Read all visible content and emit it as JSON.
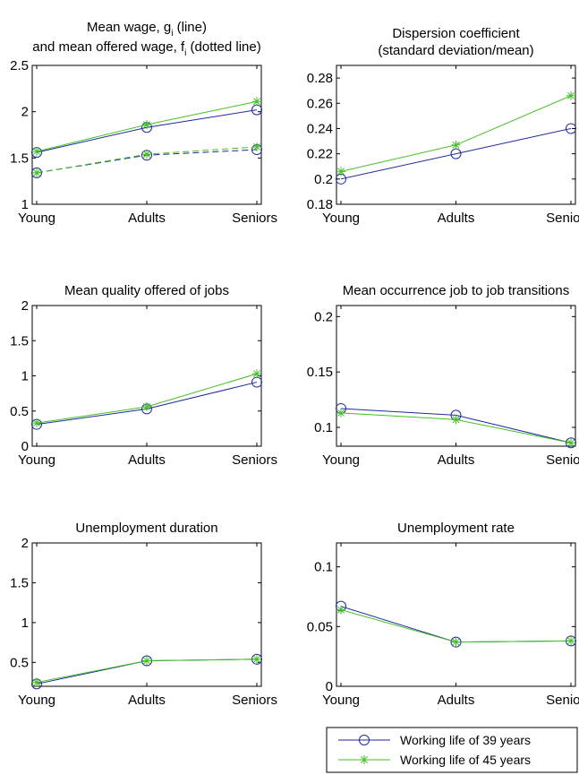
{
  "colors": {
    "series_39": "#1f2a9e",
    "series_45": "#44c022",
    "axes": "#000000"
  },
  "legend": {
    "entries": [
      {
        "label": "Working life of 39 years",
        "marker": "circle",
        "color": "#1f2a9e"
      },
      {
        "label": "Working life of 45 years",
        "marker": "star",
        "color": "#44c022"
      }
    ]
  },
  "chart_data": [
    {
      "type": "line",
      "title_lines": [
        "Mean wage, g",
        "and mean offered wage, f",
        "(line)",
        "(dotted line)"
      ],
      "title_parts": {
        "line1_main": "Mean wage, g",
        "line1_sub": "i",
        "line1_rest": " (line)",
        "line2_main": "and mean offered wage, f",
        "line2_sub": "i",
        "line2_rest": " (dotted line)"
      },
      "categories": [
        "Young",
        "Adults",
        "Seniors"
      ],
      "ylim": [
        1,
        2.5
      ],
      "yticks": [
        "1",
        "1.5",
        "2",
        "2.5"
      ],
      "ytick_values": [
        1,
        1.5,
        2,
        2.5
      ],
      "series": [
        {
          "key": "g_39",
          "values": [
            1.56,
            1.83,
            2.02
          ],
          "style": "solid",
          "color_key": "series_39",
          "marker": "circle"
        },
        {
          "key": "g_45",
          "values": [
            1.57,
            1.86,
            2.11
          ],
          "style": "solid",
          "color_key": "series_45",
          "marker": "star"
        },
        {
          "key": "f_39",
          "values": [
            1.34,
            1.53,
            1.59
          ],
          "style": "dashed",
          "color_key": "series_39",
          "marker": "circle"
        },
        {
          "key": "f_45",
          "values": [
            1.34,
            1.54,
            1.62
          ],
          "style": "dashed",
          "color_key": "series_45",
          "marker": "star"
        }
      ]
    },
    {
      "type": "line",
      "title_lines": [
        "Dispersion coefficient",
        "(standard deviation/mean)"
      ],
      "categories": [
        "Young",
        "Adults",
        "Seniors"
      ],
      "ylim": [
        0.18,
        0.29
      ],
      "yticks": [
        "0.18",
        "0.2",
        "0.22",
        "0.24",
        "0.26",
        "0.28"
      ],
      "ytick_values": [
        0.18,
        0.2,
        0.22,
        0.24,
        0.26,
        0.28
      ],
      "series": [
        {
          "key": "d_39",
          "values": [
            0.2,
            0.22,
            0.24
          ],
          "style": "solid",
          "color_key": "series_39",
          "marker": "circle"
        },
        {
          "key": "d_45",
          "values": [
            0.206,
            0.227,
            0.266
          ],
          "style": "solid",
          "color_key": "series_45",
          "marker": "star"
        }
      ]
    },
    {
      "type": "line",
      "title_lines": [
        "Mean quality offered of jobs"
      ],
      "categories": [
        "Young",
        "Adults",
        "Seniors"
      ],
      "ylim": [
        0,
        2
      ],
      "yticks": [
        "0",
        "0.5",
        "1",
        "1.5",
        "2"
      ],
      "ytick_values": [
        0,
        0.5,
        1,
        1.5,
        2
      ],
      "series": [
        {
          "key": "q_39",
          "values": [
            0.31,
            0.53,
            0.91
          ],
          "style": "solid",
          "color_key": "series_39",
          "marker": "circle"
        },
        {
          "key": "q_45",
          "values": [
            0.33,
            0.56,
            1.03
          ],
          "style": "solid",
          "color_key": "series_45",
          "marker": "star"
        }
      ]
    },
    {
      "type": "line",
      "title_lines": [
        "Mean occurrence job to job transitions"
      ],
      "categories": [
        "Young",
        "Adults",
        "Seniors"
      ],
      "ylim": [
        0.083,
        0.21
      ],
      "yticks": [
        "0.1",
        "0.15",
        "0.2"
      ],
      "ytick_values": [
        0.1,
        0.15,
        0.2
      ],
      "series": [
        {
          "key": "j_39",
          "values": [
            0.117,
            0.111,
            0.086
          ],
          "style": "solid",
          "color_key": "series_39",
          "marker": "circle"
        },
        {
          "key": "j_45",
          "values": [
            0.113,
            0.107,
            0.086
          ],
          "style": "solid",
          "color_key": "series_45",
          "marker": "star"
        }
      ]
    },
    {
      "type": "line",
      "title_lines": [
        "Unemployment duration"
      ],
      "categories": [
        "Young",
        "Adults",
        "Seniors"
      ],
      "ylim": [
        0.2,
        2
      ],
      "yticks": [
        "0.5",
        "1",
        "1.5",
        "2"
      ],
      "ytick_values": [
        0.5,
        1,
        1.5,
        2
      ],
      "series": [
        {
          "key": "u_39",
          "values": [
            0.23,
            0.52,
            0.54
          ],
          "style": "solid",
          "color_key": "series_39",
          "marker": "circle"
        },
        {
          "key": "u_45",
          "values": [
            0.25,
            0.52,
            0.54
          ],
          "style": "solid",
          "color_key": "series_45",
          "marker": "star"
        }
      ]
    },
    {
      "type": "line",
      "title_lines": [
        "Unemployment rate"
      ],
      "categories": [
        "Young",
        "Adults",
        "Seniors"
      ],
      "ylim": [
        0,
        0.12
      ],
      "yticks": [
        "0",
        "0.05",
        "0.1"
      ],
      "ytick_values": [
        0,
        0.05,
        0.1
      ],
      "series": [
        {
          "key": "r_39",
          "values": [
            0.067,
            0.037,
            0.038
          ],
          "style": "solid",
          "color_key": "series_39",
          "marker": "circle"
        },
        {
          "key": "r_45",
          "values": [
            0.064,
            0.037,
            0.038
          ],
          "style": "solid",
          "color_key": "series_45",
          "marker": "star"
        }
      ]
    }
  ]
}
